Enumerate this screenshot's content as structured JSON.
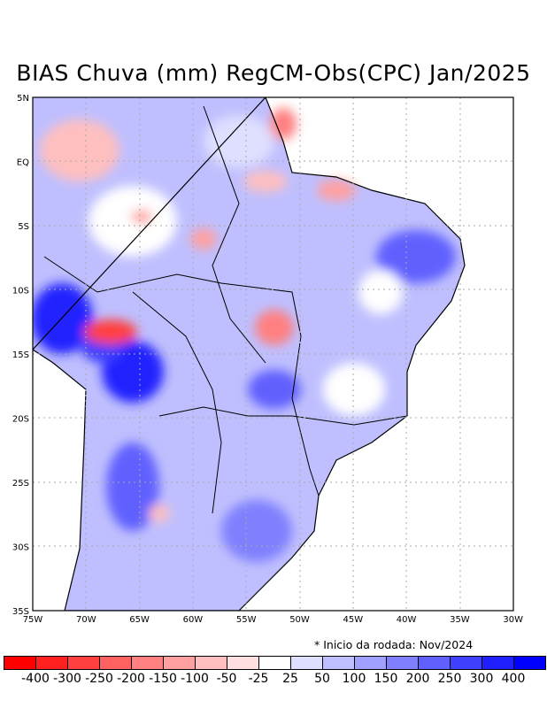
{
  "title": "BIAS Chuva (mm) RegCM-Obs(CPC) Jan/2025",
  "note": "* Inicio da rodada: Nov/2024",
  "lat_ticks": [
    "5N",
    "EQ",
    "5S",
    "10S",
    "15S",
    "20S",
    "25S",
    "30S",
    "35S"
  ],
  "lon_ticks": [
    "75W",
    "70W",
    "65W",
    "60W",
    "55W",
    "50W",
    "45W",
    "40W",
    "35W",
    "30W"
  ],
  "colorbar": {
    "colors": [
      "#ff0000",
      "#ff2020",
      "#ff4040",
      "#ff6060",
      "#ff8080",
      "#ffa0a0",
      "#ffbfbf",
      "#ffdfdf",
      "#ffffff",
      "#dfdfff",
      "#bfbfff",
      "#a0a0ff",
      "#8080ff",
      "#6060ff",
      "#4040ff",
      "#2020ff",
      "#0000ff"
    ],
    "labels": [
      "-400",
      "-300",
      "-250",
      "-200",
      "-150",
      "-100",
      "-50",
      "-25",
      "25",
      "50",
      "100",
      "150",
      "200",
      "250",
      "300",
      "400"
    ]
  }
}
